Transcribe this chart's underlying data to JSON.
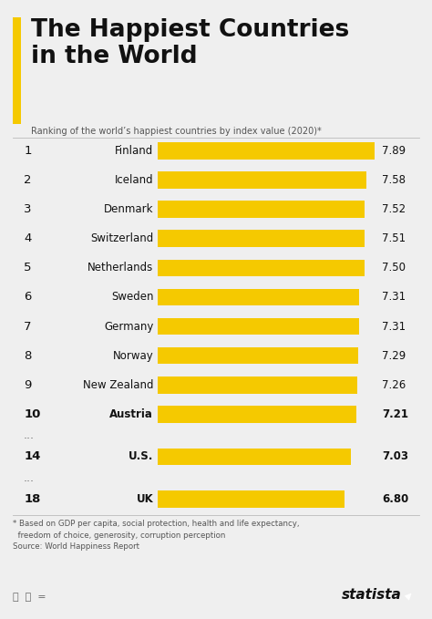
{
  "title": "The Happiest Countries\nin the World",
  "subtitle": "Ranking of the world’s happiest countries by index value (2020)*",
  "footnote": "* Based on GDP per capita, social protection, health and life expectancy,\n  freedom of choice, generosity, corruption perception\nSource: World Happiness Report",
  "ranks": [
    "1",
    "2",
    "3",
    "4",
    "5",
    "6",
    "7",
    "8",
    "9",
    "10",
    "...",
    "14",
    "...",
    "18"
  ],
  "countries": [
    "Finland",
    "Iceland",
    "Denmark",
    "Switzerland",
    "Netherlands",
    "Sweden",
    "Germany",
    "Norway",
    "New Zealand",
    "Austria",
    null,
    "U.S.",
    null,
    "UK"
  ],
  "values": [
    7.89,
    7.58,
    7.52,
    7.51,
    7.5,
    7.31,
    7.31,
    7.29,
    7.26,
    7.21,
    null,
    7.03,
    null,
    6.8
  ],
  "bar_color": "#F5C900",
  "bg_color": "#efefef",
  "title_bar_color": "#F5C900",
  "title_color": "#111111",
  "rank_color": "#111111",
  "value_color": "#111111",
  "country_color": "#111111",
  "bar_scale_max": 8.0,
  "statista_color": "#111111"
}
